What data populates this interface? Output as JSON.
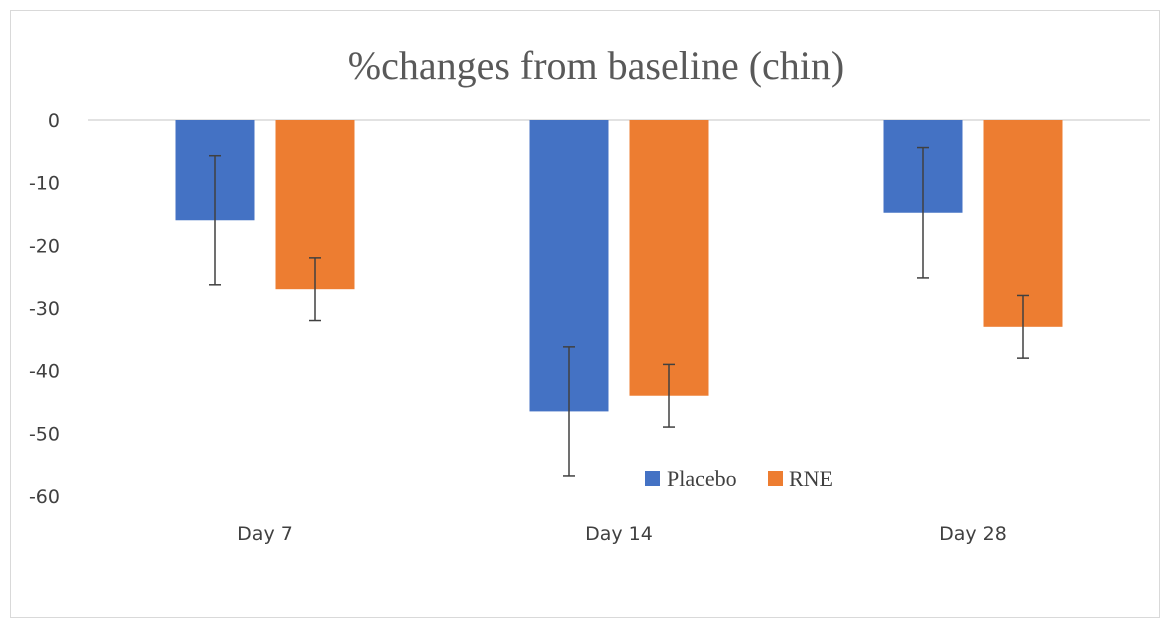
{
  "chart_data": {
    "type": "bar",
    "title": "%changes from baseline (chin)",
    "xlabel": "",
    "ylabel": "",
    "categories": [
      "Day 7",
      "Day 14",
      "Day 28"
    ],
    "ylim": [
      -60,
      0
    ],
    "yticks": [
      0,
      -10,
      -20,
      -30,
      -40,
      -50,
      -60
    ],
    "grid": {
      "zero_line": true,
      "horizontal_gridlines": false
    },
    "legend_position": "bottom-center",
    "series": [
      {
        "name": "Placebo",
        "color": "#4472C4",
        "values": [
          -16.0,
          -46.5,
          -14.8
        ],
        "error": [
          10.3,
          10.3,
          10.4
        ]
      },
      {
        "name": "RNE",
        "color": "#ED7D31",
        "values": [
          -27.0,
          -44.0,
          -33.0
        ],
        "error": [
          5.0,
          5.0,
          5.0
        ]
      }
    ],
    "error_bar_color": "#404040"
  }
}
